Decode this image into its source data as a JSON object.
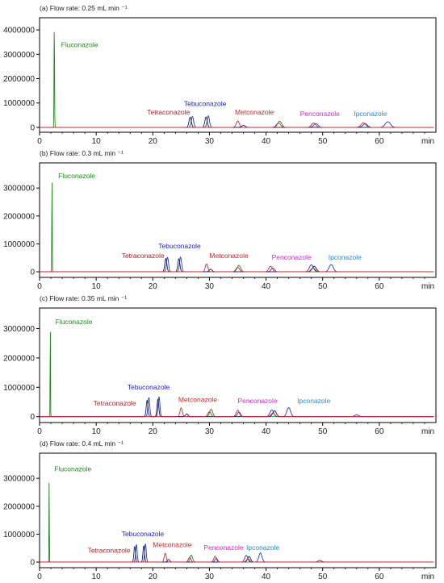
{
  "figure": {
    "x_unit": "min",
    "colors": {
      "fluconazole": "#1a8c1a",
      "tetraconazole": "#b22222",
      "tebuconazole": "#2222cc",
      "metconazole": "#dd2222",
      "penconazole": "#dd22dd",
      "ipconazole": "#2a8ad6",
      "trace_blue": "#1f3fbf",
      "trace_navy": "#1b1b6b",
      "trace_red": "#d12c2c",
      "trace_green": "#1a8c1a",
      "frame": "#000000"
    }
  },
  "chart_data": [
    {
      "type": "line",
      "title": "(a) Flow rate: 0.25 mL min ⁻¹",
      "xlabel": "min",
      "ylabel": "",
      "xlim": [
        0,
        70
      ],
      "ylim": [
        -200000,
        4500000
      ],
      "x_ticks": [
        0,
        10,
        20,
        30,
        40,
        50,
        60
      ],
      "y_ticks": [
        0,
        1000000,
        2000000,
        3000000,
        4000000
      ],
      "y_tick_labels": [
        "0",
        "1000000",
        "2000000",
        "3000000",
        "4000000"
      ],
      "grid": false,
      "peaks": [
        {
          "name": "Fluconazole",
          "rt": 2.6,
          "height": 4300000,
          "label_rt": 3.8,
          "label_y": 3300000,
          "label_color": "#1a8c1a"
        },
        {
          "name": "Tetraconazole",
          "rt": 26.8,
          "height": 450000,
          "label_rt": 19.0,
          "label_y": 520000,
          "label_color": "#b22222"
        },
        {
          "name": "Tebuconazole",
          "rt": 29.6,
          "height": 480000,
          "label_rt": 25.5,
          "label_y": 880000,
          "label_color": "#2222cc"
        },
        {
          "name": "Metconazole",
          "rt": 35.0,
          "height": 260000,
          "label_rt": 34.5,
          "label_y": 520000,
          "label_color": "#dd2222"
        },
        {
          "name": "Penconazole",
          "rt": 48.5,
          "height": 250000,
          "label_rt": 46.0,
          "label_y": 470000,
          "label_color": "#dd22dd"
        },
        {
          "name": "Ipconazole",
          "rt": 61.5,
          "height": 230000,
          "label_rt": 55.5,
          "label_y": 470000,
          "label_color": "#2a8ad6"
        }
      ],
      "series": [
        {
          "color": "#1a8c1a",
          "peaks": [
            [
              2.6,
              4300000,
              0.1
            ],
            [
              42.4,
              250000,
              0.8
            ]
          ]
        },
        {
          "color": "#1f3fbf",
          "peaks": [
            [
              27.0,
              450000,
              0.45
            ],
            [
              29.8,
              480000,
              0.45
            ],
            [
              48.8,
              160000,
              0.8
            ],
            [
              57.5,
              150000,
              0.9
            ],
            [
              61.5,
              230000,
              1.0
            ]
          ]
        },
        {
          "color": "#1b1b6b",
          "peaks": [
            [
              26.6,
              420000,
              0.45
            ],
            [
              29.4,
              430000,
              0.45
            ],
            [
              36.0,
              80000,
              0.7
            ]
          ]
        },
        {
          "color": "#d12c2c",
          "peaks": [
            [
              35.0,
              260000,
              0.6
            ],
            [
              42.2,
              180000,
              0.8
            ],
            [
              48.4,
              180000,
              0.8
            ],
            [
              57.2,
              190000,
              0.9
            ]
          ]
        }
      ]
    },
    {
      "type": "line",
      "title": "(b) Flow rate: 0.3 mL min ⁻¹",
      "xlabel": "min",
      "ylabel": "",
      "xlim": [
        0,
        70
      ],
      "ylim": [
        -200000,
        3900000
      ],
      "x_ticks": [
        0,
        10,
        20,
        30,
        40,
        50,
        60
      ],
      "y_ticks": [
        0,
        1000000,
        2000000,
        3000000
      ],
      "y_tick_labels": [
        "0",
        "1000000",
        "2000000",
        "3000000"
      ],
      "grid": false,
      "peaks": [
        {
          "name": "Fluconazole",
          "rt": 2.2,
          "height": 3700000,
          "label_rt": 3.3,
          "label_y": 3350000,
          "label_color": "#1a8c1a"
        },
        {
          "name": "Tetraconazole",
          "rt": 22.5,
          "height": 520000,
          "label_rt": 14.5,
          "label_y": 500000,
          "label_color": "#b22222"
        },
        {
          "name": "Tebuconazole",
          "rt": 24.8,
          "height": 530000,
          "label_rt": 21.0,
          "label_y": 840000,
          "label_color": "#2222cc"
        },
        {
          "name": "Metconazole",
          "rt": 29.5,
          "height": 280000,
          "label_rt": 30.0,
          "label_y": 500000,
          "label_color": "#dd2222"
        },
        {
          "name": "Penconazole",
          "rt": 41.0,
          "height": 250000,
          "label_rt": 41.0,
          "label_y": 440000,
          "label_color": "#dd22dd"
        },
        {
          "name": "Ipconazole",
          "rt": 51.5,
          "height": 260000,
          "label_rt": 51.0,
          "label_y": 440000,
          "label_color": "#2a8ad6"
        }
      ],
      "series": [
        {
          "color": "#1a8c1a",
          "peaks": [
            [
              2.2,
              3700000,
              0.08
            ],
            [
              35.2,
              230000,
              0.7
            ]
          ]
        },
        {
          "color": "#1f3fbf",
          "peaks": [
            [
              22.6,
              520000,
              0.4
            ],
            [
              24.9,
              530000,
              0.4
            ],
            [
              41.2,
              130000,
              0.7
            ],
            [
              48.0,
              250000,
              0.8
            ],
            [
              51.5,
              260000,
              0.8
            ]
          ]
        },
        {
          "color": "#1b1b6b",
          "peaks": [
            [
              22.3,
              480000,
              0.4
            ],
            [
              24.6,
              470000,
              0.4
            ],
            [
              30.2,
              90000,
              0.6
            ],
            [
              48.5,
              200000,
              0.8
            ]
          ]
        },
        {
          "color": "#d12c2c",
          "peaks": [
            [
              29.5,
              280000,
              0.5
            ],
            [
              35.0,
              160000,
              0.7
            ],
            [
              40.8,
              200000,
              0.7
            ],
            [
              48.3,
              140000,
              0.8
            ]
          ]
        }
      ]
    },
    {
      "type": "line",
      "title": "(c) Flow rate: 0.35 mL min ⁻¹",
      "xlabel": "min",
      "ylabel": "",
      "xlim": [
        0,
        70
      ],
      "ylim": [
        -200000,
        3700000
      ],
      "x_ticks": [
        0,
        10,
        20,
        30,
        40,
        50,
        60
      ],
      "y_ticks": [
        0,
        1000000,
        2000000,
        3000000
      ],
      "y_tick_labels": [
        "0",
        "1000000",
        "2000000",
        "3000000"
      ],
      "grid": false,
      "peaks": [
        {
          "name": "Fluconazole",
          "rt": 1.9,
          "height": 3500000,
          "label_rt": 2.8,
          "label_y": 3150000,
          "label_color": "#1a8c1a"
        },
        {
          "name": "Tetraconazole",
          "rt": 19.2,
          "height": 650000,
          "label_rt": 9.5,
          "label_y": 380000,
          "label_color": "#b22222"
        },
        {
          "name": "Tebuconazole",
          "rt": 21.0,
          "height": 680000,
          "label_rt": 15.5,
          "label_y": 930000,
          "label_color": "#2222cc"
        },
        {
          "name": "Metconazole",
          "rt": 25.0,
          "height": 300000,
          "label_rt": 24.5,
          "label_y": 500000,
          "label_color": "#dd2222"
        },
        {
          "name": "Penconazole",
          "rt": 35.0,
          "height": 280000,
          "label_rt": 35.0,
          "label_y": 460000,
          "label_color": "#dd22dd"
        },
        {
          "name": "Ipconazole",
          "rt": 44.0,
          "height": 310000,
          "label_rt": 45.5,
          "label_y": 460000,
          "label_color": "#2a8ad6"
        }
      ],
      "series": [
        {
          "color": "#1a8c1a",
          "peaks": [
            [
              1.9,
              3500000,
              0.07
            ],
            [
              30.3,
              250000,
              0.6
            ]
          ]
        },
        {
          "color": "#1f3fbf",
          "peaks": [
            [
              19.3,
              650000,
              0.35
            ],
            [
              21.1,
              680000,
              0.35
            ],
            [
              35.2,
              160000,
              0.6
            ],
            [
              41.0,
              230000,
              0.7
            ],
            [
              44.0,
              310000,
              0.7
            ],
            [
              56.0,
              60000,
              0.8
            ]
          ]
        },
        {
          "color": "#1b1b6b",
          "peaks": [
            [
              19.0,
              560000,
              0.35
            ],
            [
              20.9,
              600000,
              0.35
            ],
            [
              26.0,
              90000,
              0.5
            ],
            [
              41.5,
              200000,
              0.7
            ]
          ]
        },
        {
          "color": "#d12c2c",
          "peaks": [
            [
              25.0,
              300000,
              0.45
            ],
            [
              30.0,
              170000,
              0.6
            ],
            [
              35.0,
              220000,
              0.6
            ],
            [
              41.2,
              120000,
              0.7
            ]
          ]
        }
      ]
    },
    {
      "type": "line",
      "title": "(d) Flow rate: 0.4 mL min ⁻¹",
      "xlabel": "min",
      "ylabel": "",
      "xlim": [
        0,
        70
      ],
      "ylim": [
        -200000,
        3900000
      ],
      "x_ticks": [
        0,
        10,
        20,
        30,
        40,
        50,
        60
      ],
      "y_ticks": [
        0,
        1000000,
        2000000,
        3000000
      ],
      "y_tick_labels": [
        "0",
        "1000000",
        "2000000",
        "3000000"
      ],
      "grid": false,
      "peaks": [
        {
          "name": "Fluconazole",
          "rt": 1.7,
          "height": 3700000,
          "label_rt": 2.6,
          "label_y": 3250000,
          "label_color": "#1a8c1a"
        },
        {
          "name": "Tetraconazole",
          "rt": 17.0,
          "height": 640000,
          "label_rt": 8.5,
          "label_y": 330000,
          "label_color": "#b22222"
        },
        {
          "name": "Tebuconazole",
          "rt": 18.6,
          "height": 660000,
          "label_rt": 14.5,
          "label_y": 930000,
          "label_color": "#2222cc"
        },
        {
          "name": "Metconazole",
          "rt": 22.2,
          "height": 320000,
          "label_rt": 20.0,
          "label_y": 530000,
          "label_color": "#dd2222"
        },
        {
          "name": "Penconazole",
          "rt": 31.0,
          "height": 280000,
          "label_rt": 29.0,
          "label_y": 430000,
          "label_color": "#dd22dd"
        },
        {
          "name": "Ipconazole",
          "rt": 39.0,
          "height": 330000,
          "label_rt": 36.5,
          "label_y": 430000,
          "label_color": "#2a8ad6"
        }
      ],
      "series": [
        {
          "color": "#1a8c1a",
          "peaks": [
            [
              1.7,
              3700000,
              0.06
            ],
            [
              26.8,
              250000,
              0.5
            ]
          ]
        },
        {
          "color": "#1f3fbf",
          "peaks": [
            [
              17.1,
              630000,
              0.3
            ],
            [
              18.7,
              660000,
              0.3
            ],
            [
              31.2,
              140000,
              0.5
            ],
            [
              36.5,
              240000,
              0.6
            ],
            [
              39.0,
              330000,
              0.6
            ],
            [
              49.5,
              60000,
              0.7
            ]
          ]
        },
        {
          "color": "#1b1b6b",
          "peaks": [
            [
              16.8,
              560000,
              0.3
            ],
            [
              18.4,
              590000,
              0.3
            ],
            [
              22.8,
              90000,
              0.45
            ],
            [
              37.0,
              200000,
              0.6
            ]
          ]
        },
        {
          "color": "#d12c2c",
          "peaks": [
            [
              22.2,
              320000,
              0.4
            ],
            [
              26.5,
              170000,
              0.5
            ],
            [
              31.0,
              210000,
              0.5
            ],
            [
              36.8,
              120000,
              0.6
            ]
          ]
        }
      ]
    }
  ]
}
